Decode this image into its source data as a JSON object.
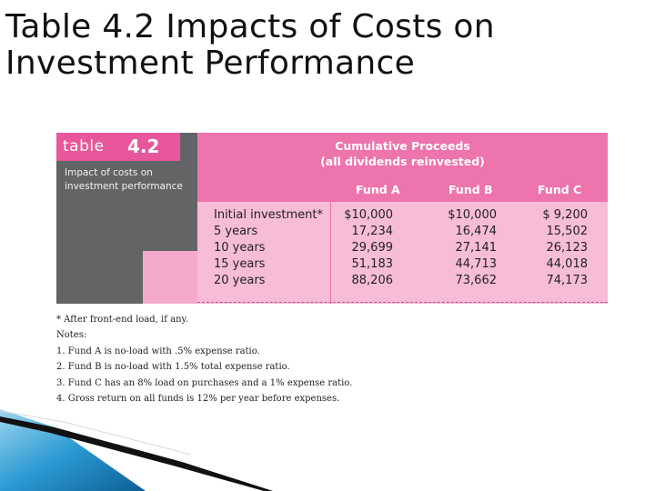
{
  "slide": {
    "title_line1": "Table 4.2 Impacts of Costs on",
    "title_line2": "Investment Performance"
  },
  "table": {
    "label_word": "table",
    "label_number": "4.2",
    "subtitle_line1": "Impact of costs on",
    "subtitle_line2": "investment performance",
    "header_line1": "Cumulative Proceeds",
    "header_line2": "(all dividends reinvested)",
    "columns": [
      "Fund A",
      "Fund B",
      "Fund C"
    ],
    "rows": [
      {
        "label": "Initial investment*",
        "a": "$10,000",
        "b": "$10,000",
        "c": "$  9,200"
      },
      {
        "label": "5 years",
        "a": "17,234",
        "b": "16,474",
        "c": "15,502"
      },
      {
        "label": "10 years",
        "a": "29,699",
        "b": "27,141",
        "c": "26,123"
      },
      {
        "label": "15 years",
        "a": "51,183",
        "b": "44,713",
        "c": "44,018"
      },
      {
        "label": "20 years",
        "a": "88,206",
        "b": "73,662",
        "c": "74,173"
      }
    ]
  },
  "notes": {
    "footnote": "* After front-end load, if any.",
    "heading": "Notes:",
    "items": [
      "1. Fund A is no-load with .5% expense ratio.",
      "2. Fund B is no-load with 1.5% total expense ratio.",
      "3. Fund C has an 8% load on purchases and a 1% expense ratio.",
      "4. Gross return on all funds is 12% per year before expenses."
    ]
  },
  "colors": {
    "dark_panel": "#636466",
    "hot_pink": "#e8579b",
    "header_pink": "#ee74ad",
    "light_pink": "#f7bcd6",
    "decor_blue": "#1f8fc9"
  }
}
